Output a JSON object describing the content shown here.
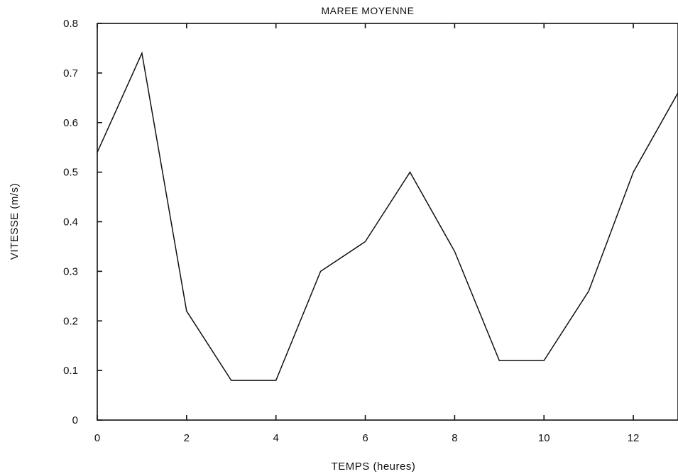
{
  "chart_data": {
    "type": "line",
    "title": "MAREE MOYENNE",
    "xlabel": "TEMPS (heures)",
    "ylabel": "VITESSE (m/s)",
    "xlim": [
      0,
      13
    ],
    "ylim": [
      0,
      0.8
    ],
    "x_ticks": [
      0,
      2,
      4,
      6,
      8,
      10,
      12
    ],
    "x_tick_labels": [
      "0",
      "2",
      "4",
      "6",
      "8",
      "10",
      "12"
    ],
    "y_ticks": [
      0,
      0.1,
      0.2,
      0.3,
      0.4,
      0.5,
      0.6,
      0.7,
      0.8
    ],
    "y_tick_labels": [
      "0",
      "0.1",
      "0.2",
      "0.3",
      "0.4",
      "0.5",
      "0.6",
      "0.7",
      "0.8"
    ],
    "grid": false,
    "legend": "none",
    "series": [
      {
        "x": [
          0,
          1,
          2,
          3,
          4,
          5,
          6,
          7,
          8,
          9,
          10,
          11,
          12,
          13
        ],
        "y": [
          0.54,
          0.74,
          0.22,
          0.08,
          0.08,
          0.3,
          0.36,
          0.5,
          0.34,
          0.12,
          0.12,
          0.26,
          0.5,
          0.66
        ]
      }
    ]
  }
}
